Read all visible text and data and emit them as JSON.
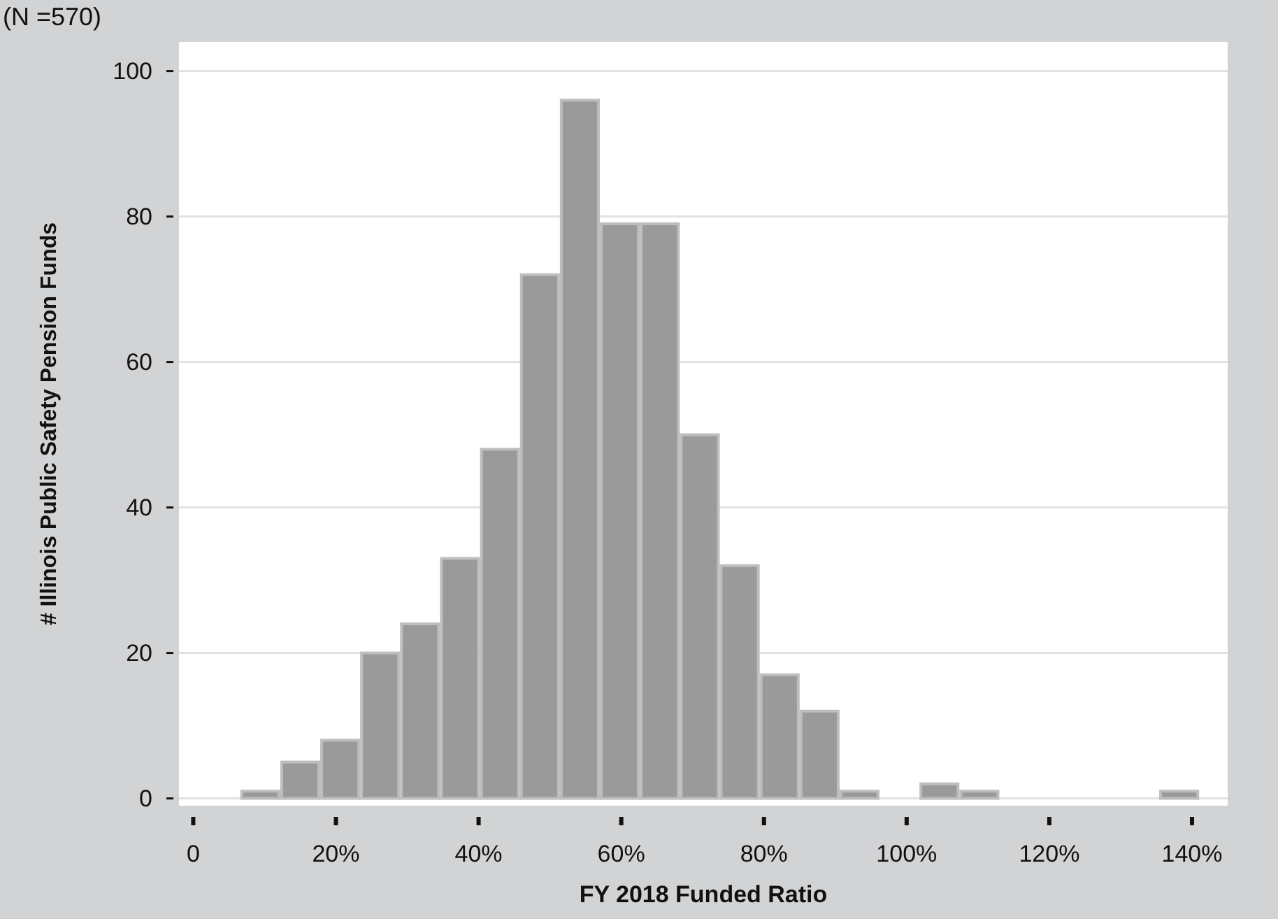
{
  "chart_data": {
    "type": "histogram",
    "subtitle": "(N =570)",
    "xlabel": "FY 2018 Funded Ratio",
    "ylabel": "# Illinois Public Safety Pension Funds",
    "bins": [
      6.6,
      12.2,
      17.8,
      23.4,
      29,
      34.6,
      40.2,
      45.8,
      51.4,
      57,
      62.6,
      68.2,
      73.8,
      79.4,
      85,
      90.6,
      96.2,
      101.8,
      107.4,
      113,
      118.6,
      124.2,
      129.8,
      135.4,
      141
    ],
    "values": [
      1,
      5,
      8,
      20,
      24,
      33,
      48,
      72,
      96,
      79,
      79,
      50,
      32,
      17,
      12,
      1,
      0,
      2,
      1,
      0,
      0,
      0,
      0,
      1
    ],
    "color": "#9a9a9a",
    "xlim": [
      -2,
      145
    ],
    "xticks": [
      {
        "value": 0,
        "label": "0"
      },
      {
        "value": 20,
        "label": "20%"
      },
      {
        "value": 40,
        "label": "40%"
      },
      {
        "value": 60,
        "label": "60%"
      },
      {
        "value": 80,
        "label": "80%"
      },
      {
        "value": 100,
        "label": "100%"
      },
      {
        "value": 120,
        "label": "120%"
      },
      {
        "value": 140,
        "label": "140%"
      }
    ],
    "ylim": [
      -1,
      104
    ],
    "yticks": [
      0,
      20,
      40,
      60,
      80,
      100
    ],
    "grid": "y"
  }
}
